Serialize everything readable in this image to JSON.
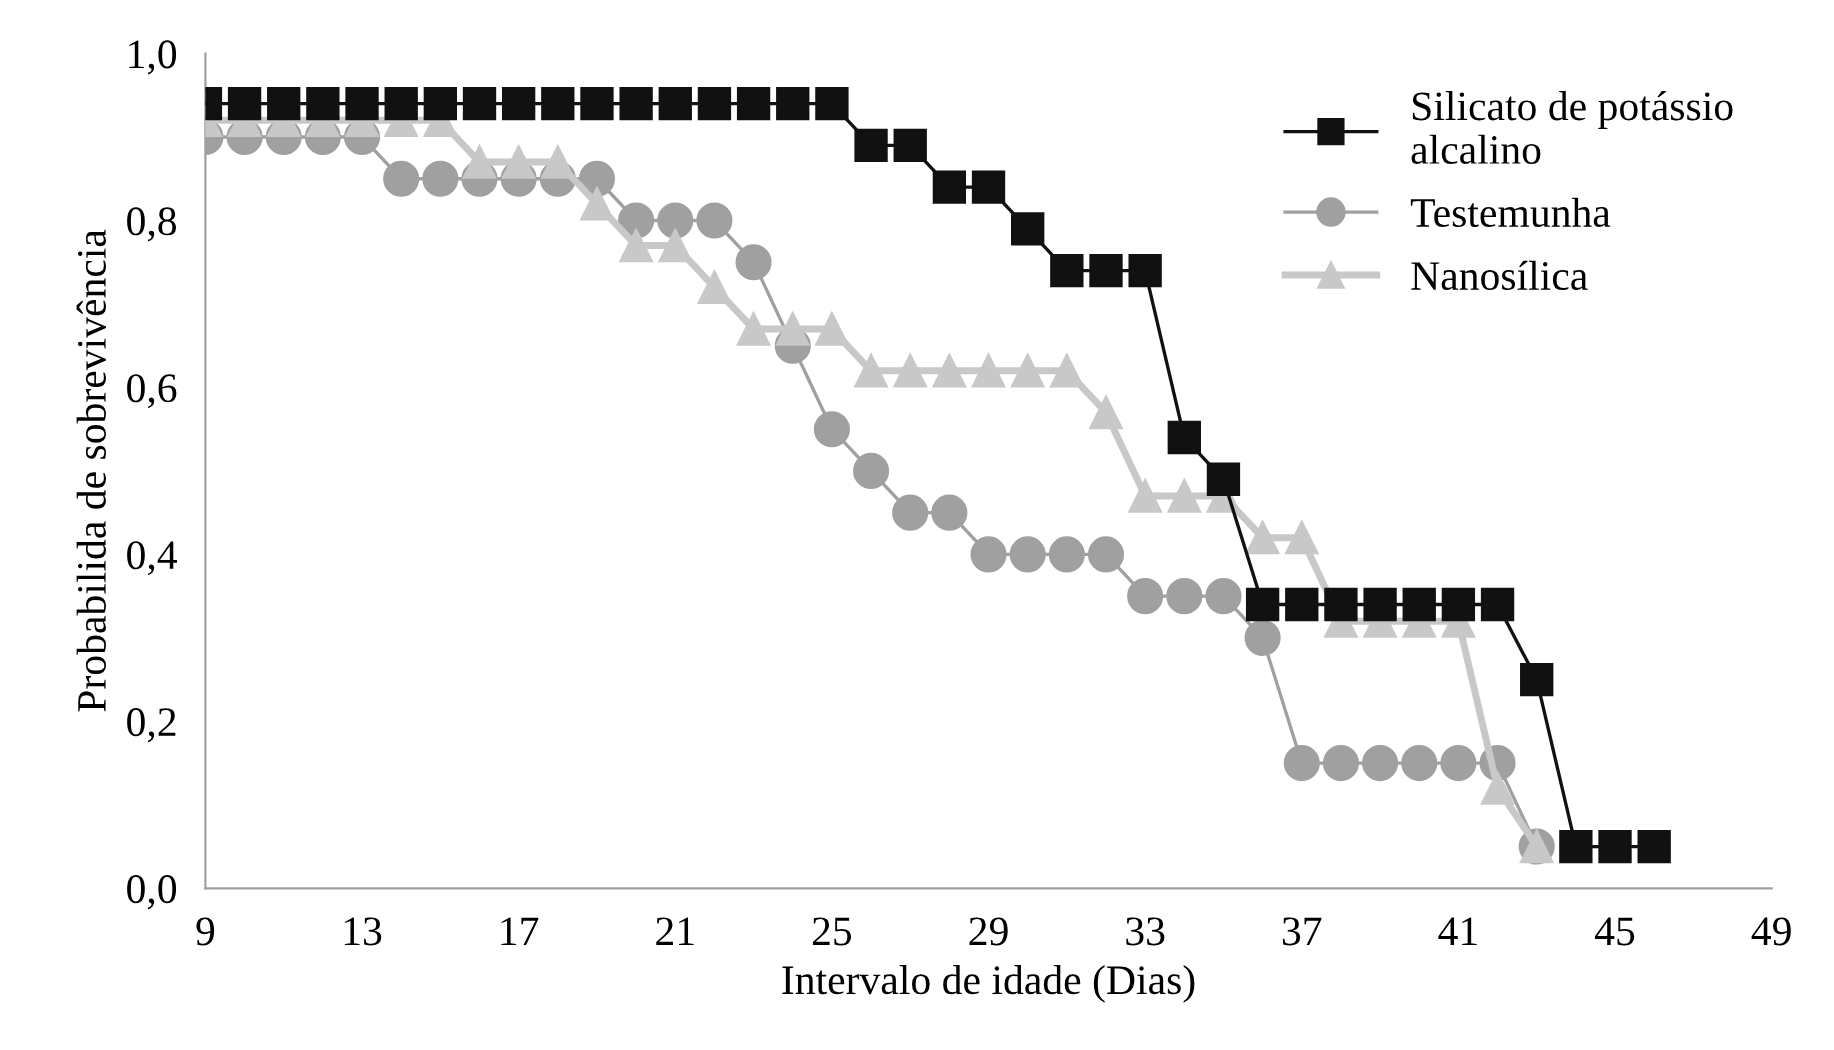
{
  "chart_data": {
    "type": "line",
    "xlabel": "Intervalo de idade (Dias)",
    "ylabel": "Probabilida de sobrevivência",
    "xlim": [
      9,
      49
    ],
    "xticks": [
      9,
      13,
      17,
      21,
      25,
      29,
      33,
      37,
      41,
      45,
      49
    ],
    "ylim": [
      0,
      1
    ],
    "yticks": [
      {
        "value": 0,
        "label": "0,0"
      },
      {
        "value": 0.2,
        "label": "0,2"
      },
      {
        "value": 0.4,
        "label": "0,4"
      },
      {
        "value": 0.6,
        "label": "0,6"
      },
      {
        "value": 0.8,
        "label": "0,8"
      },
      {
        "value": 1,
        "label": "1,0"
      }
    ],
    "grid": false,
    "legend": "top right",
    "line_style": "solid",
    "series": [
      {
        "name": "Silicato de potássio\nalcalino",
        "color": "#111111",
        "marker": "square",
        "x": [
          9,
          10,
          11,
          12,
          13,
          14,
          15,
          16,
          17,
          18,
          19,
          20,
          21,
          22,
          23,
          24,
          25,
          26,
          27,
          28,
          29,
          30,
          31,
          32,
          33,
          34,
          35,
          36,
          37,
          38,
          39,
          40,
          41,
          42,
          43,
          44,
          45,
          46
        ],
        "values": [
          0.94,
          0.94,
          0.94,
          0.94,
          0.94,
          0.94,
          0.94,
          0.94,
          0.94,
          0.94,
          0.94,
          0.94,
          0.94,
          0.94,
          0.94,
          0.94,
          0.94,
          0.89,
          0.89,
          0.84,
          0.84,
          0.79,
          0.74,
          0.74,
          0.74,
          0.54,
          0.49,
          0.34,
          0.34,
          0.34,
          0.34,
          0.34,
          0.34,
          0.34,
          0.25,
          0.05,
          0.05,
          0.05
        ]
      },
      {
        "name": "Testemunha",
        "color": "#a0a0a0",
        "marker": "circle",
        "x": [
          9,
          10,
          11,
          12,
          13,
          14,
          15,
          16,
          17,
          18,
          19,
          20,
          21,
          22,
          23,
          24,
          25,
          26,
          27,
          28,
          29,
          30,
          31,
          32,
          33,
          34,
          35,
          36,
          37,
          38,
          39,
          40,
          41,
          42,
          43
        ],
        "values": [
          0.9,
          0.9,
          0.9,
          0.9,
          0.9,
          0.85,
          0.85,
          0.85,
          0.85,
          0.85,
          0.85,
          0.8,
          0.8,
          0.8,
          0.75,
          0.65,
          0.55,
          0.5,
          0.45,
          0.45,
          0.4,
          0.4,
          0.4,
          0.4,
          0.35,
          0.35,
          0.35,
          0.3,
          0.15,
          0.15,
          0.15,
          0.15,
          0.15,
          0.15,
          0.05
        ]
      },
      {
        "name": "Nanosílica",
        "color": "#c8c8c8",
        "marker": "triangle",
        "x": [
          9,
          10,
          11,
          12,
          13,
          14,
          15,
          16,
          17,
          18,
          19,
          20,
          21,
          22,
          23,
          24,
          25,
          26,
          27,
          28,
          29,
          30,
          31,
          32,
          33,
          34,
          35,
          36,
          37,
          38,
          39,
          40,
          41,
          42,
          43
        ],
        "values": [
          0.92,
          0.92,
          0.92,
          0.92,
          0.92,
          0.92,
          0.92,
          0.87,
          0.87,
          0.87,
          0.82,
          0.77,
          0.77,
          0.72,
          0.67,
          0.67,
          0.67,
          0.62,
          0.62,
          0.62,
          0.62,
          0.62,
          0.62,
          0.57,
          0.47,
          0.47,
          0.47,
          0.42,
          0.42,
          0.32,
          0.32,
          0.32,
          0.32,
          0.12,
          0.05
        ]
      }
    ]
  }
}
